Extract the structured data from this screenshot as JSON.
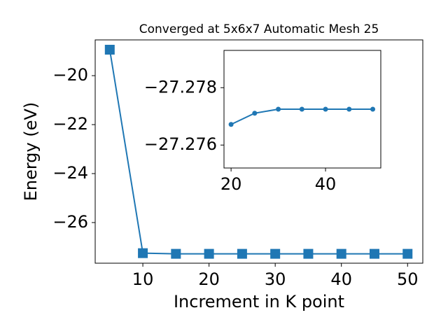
{
  "chart_data": [
    {
      "type": "line",
      "title": "Converged at 5x6x7 Automatic Mesh 25",
      "xlabel": "Increment in K point",
      "ylabel": "Energy (eV)",
      "x": [
        5,
        10,
        15,
        20,
        25,
        30,
        35,
        40,
        45,
        50
      ],
      "series": [
        {
          "color": "#1f77b4",
          "marker": "square",
          "values": [
            -18.94,
            -27.25,
            -27.277,
            -27.277,
            -27.277,
            -27.277,
            -27.277,
            -27.277,
            -27.277,
            -27.277
          ]
        }
      ],
      "xlim": [
        2.8,
        52.3
      ],
      "ylim": [
        -27.66,
        -18.54
      ],
      "xticks": [
        10,
        20,
        30,
        40,
        50
      ],
      "yticks": [
        {
          "value": -20,
          "label": "−20"
        },
        {
          "value": -22,
          "label": "−22"
        },
        {
          "value": -24,
          "label": "−24"
        },
        {
          "value": -26,
          "label": "−26"
        }
      ]
    },
    {
      "type": "line",
      "x": [
        20,
        25,
        30,
        35,
        40,
        45,
        50
      ],
      "series": [
        {
          "color": "#1f77b4",
          "marker": "circle",
          "values": [
            -27.27672,
            -27.27711,
            -27.27725,
            -27.27725,
            -27.27725,
            -27.27725,
            -27.27725
          ]
        }
      ],
      "xlim": [
        18.5,
        51.7
      ],
      "ylim": [
        -27.2752,
        -27.2793
      ],
      "xticks": [
        20,
        40
      ],
      "yticks": [
        {
          "value": -27.278,
          "label": "−27.278"
        },
        {
          "value": -27.276,
          "label": "−27.276"
        }
      ]
    }
  ]
}
